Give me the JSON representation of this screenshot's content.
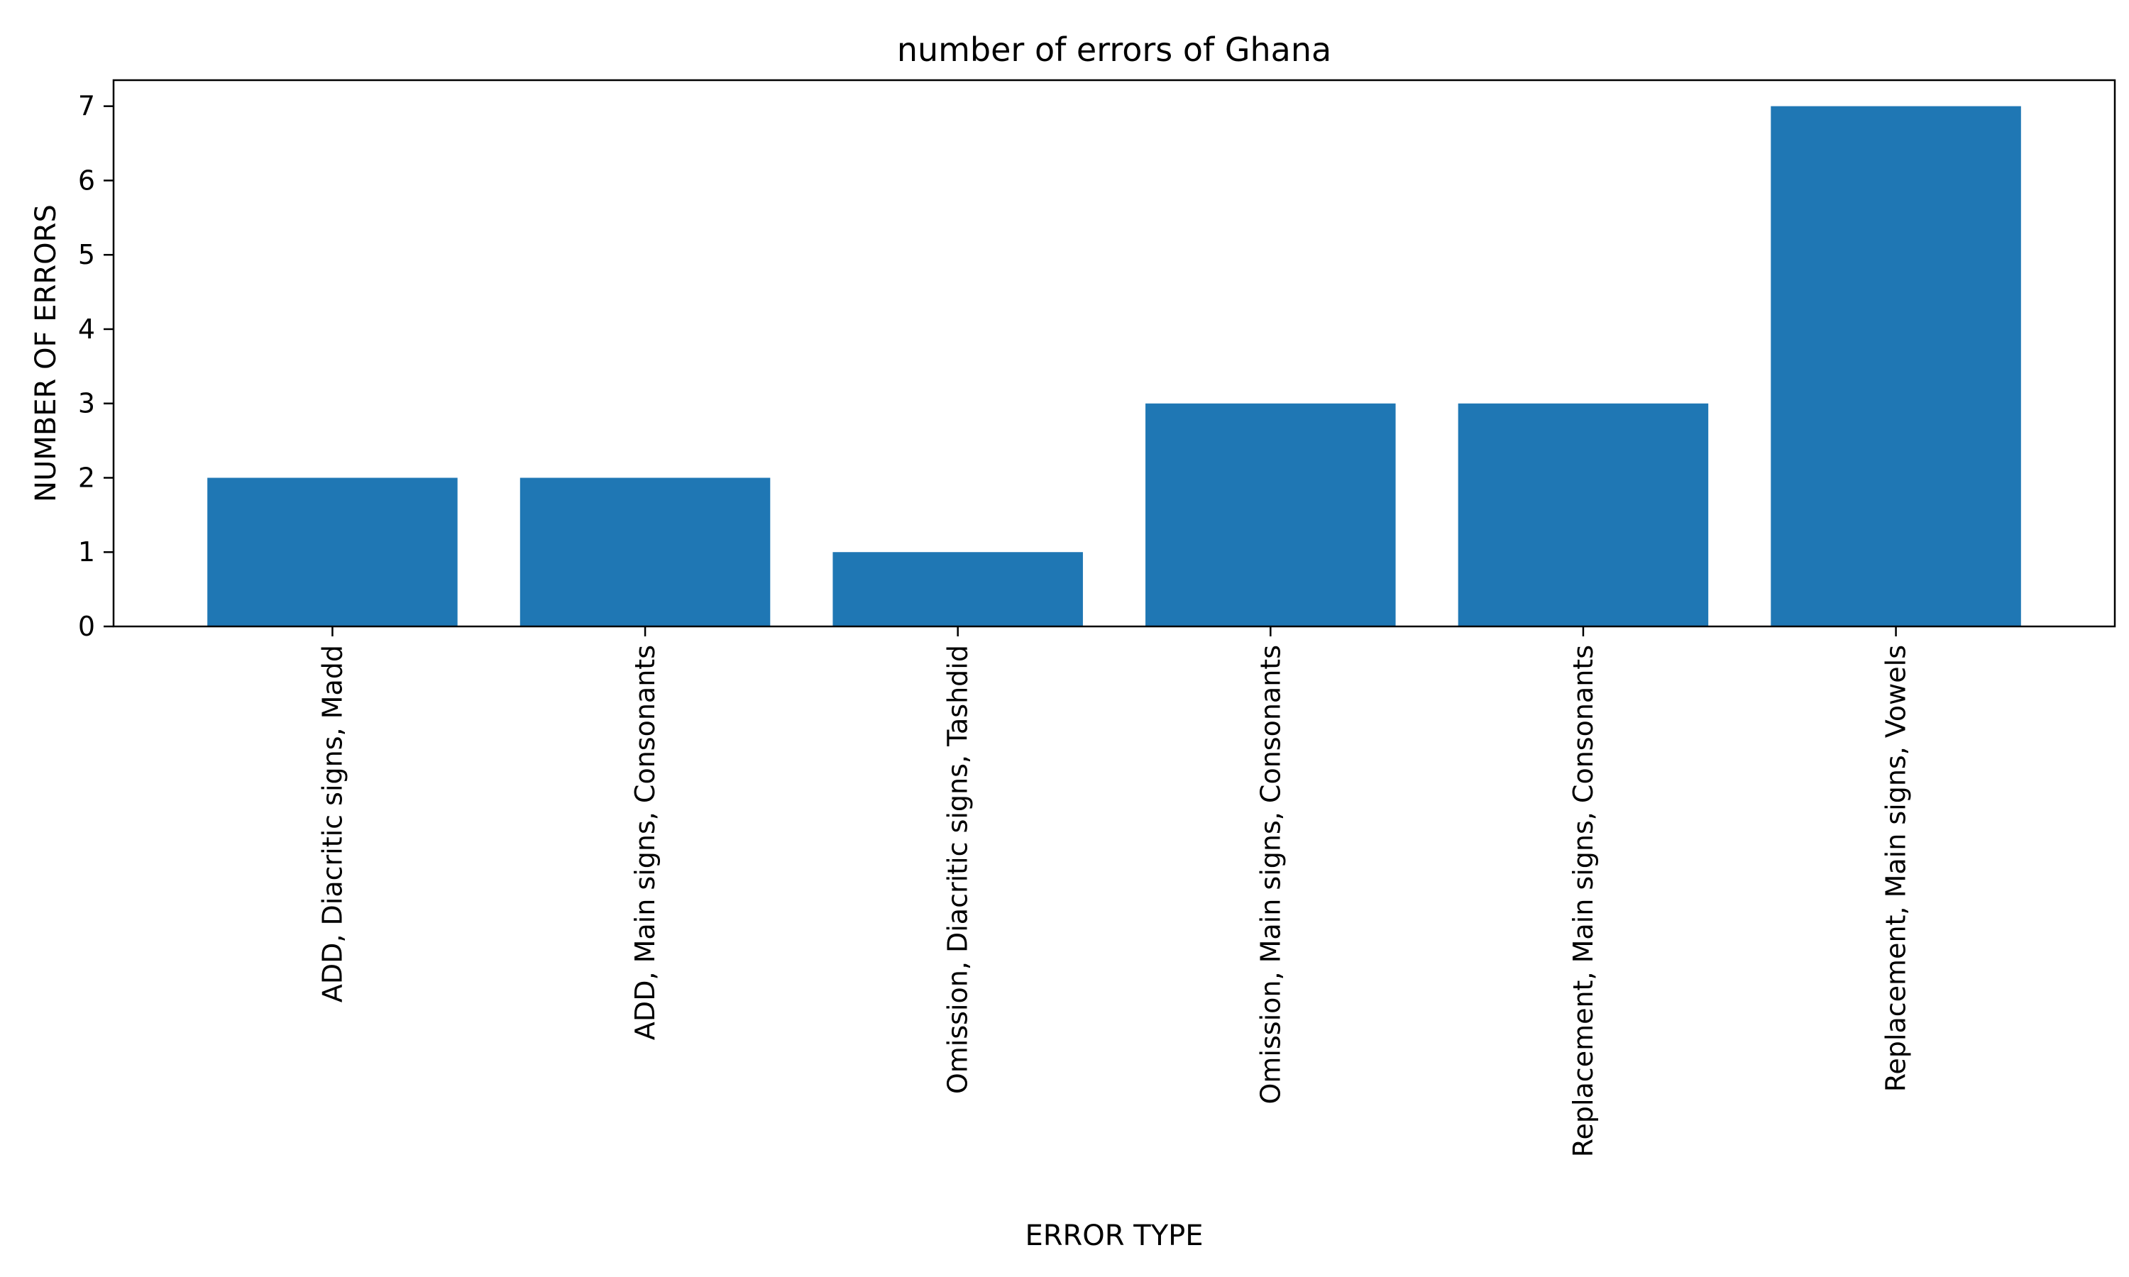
{
  "chart_data": {
    "type": "bar",
    "title": "number of errors of Ghana",
    "xlabel": "ERROR TYPE",
    "ylabel": "NUMBER OF ERRORS",
    "categories": [
      "ADD, Diacritic signs, Madd",
      "ADD, Main signs, Consonants",
      "Omission, Diacritic signs, Tashdid",
      "Omission, Main signs, Consonants",
      "Replacement, Main signs, Consonants",
      "Replacement, Main signs, Vowels"
    ],
    "values": [
      2,
      2,
      1,
      3,
      3,
      7
    ],
    "ylim": [
      0,
      7.35
    ],
    "yticks": [
      0,
      1,
      2,
      3,
      4,
      5,
      6,
      7
    ],
    "bar_color": "#1f77b4",
    "grid": false,
    "legend": false
  }
}
